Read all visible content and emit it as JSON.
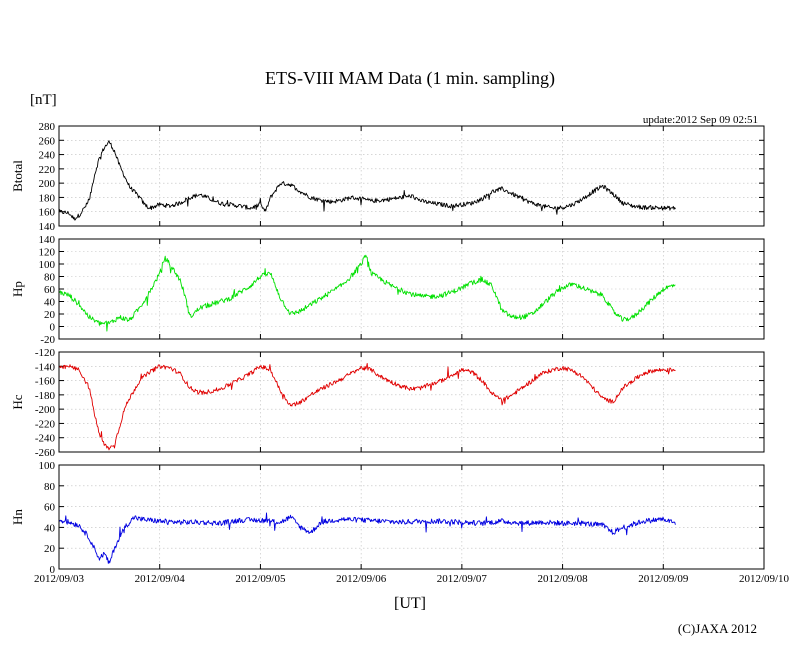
{
  "chart_data": {
    "type": "line",
    "title": "ETS-VIII MAM Data (1 min. sampling)",
    "unit_label": "[nT]",
    "update_text": "update:2012 Sep 09 02:51",
    "xlabel": "[UT]",
    "copyright": "(C)JAXA 2012",
    "x_ticks": [
      "2012/09/03",
      "2012/09/04",
      "2012/09/05",
      "2012/09/06",
      "2012/09/07",
      "2012/09/08",
      "2012/09/09",
      "2012/09/10"
    ],
    "x_range_days": [
      0,
      7
    ],
    "data_end_day": 6.12,
    "panels": [
      {
        "name": "Btotal",
        "ylabel": "Btotal",
        "ylim": [
          140,
          280
        ],
        "yticks": [
          "280",
          "260",
          "240",
          "220",
          "200",
          "180",
          "160",
          "140"
        ],
        "color": "#000000",
        "noise": 3,
        "series_x": [
          0,
          0.1,
          0.15,
          0.2,
          0.3,
          0.35,
          0.4,
          0.45,
          0.5,
          0.55,
          0.6,
          0.7,
          0.8,
          0.85,
          0.9,
          1.0,
          1.1,
          1.2,
          1.3,
          1.4,
          1.5,
          1.6,
          1.7,
          1.8,
          1.9,
          2.0,
          2.05,
          2.1,
          2.2,
          2.3,
          2.4,
          2.5,
          2.6,
          2.7,
          2.8,
          2.9,
          3.0,
          3.1,
          3.2,
          3.3,
          3.4,
          3.5,
          3.6,
          3.7,
          3.8,
          3.9,
          4.0,
          4.1,
          4.2,
          4.3,
          4.4,
          4.5,
          4.6,
          4.7,
          4.8,
          4.9,
          5.0,
          5.1,
          5.2,
          5.3,
          5.4,
          5.5,
          5.6,
          5.7,
          5.8,
          5.9,
          6.0,
          6.12
        ],
        "series_y": [
          160,
          158,
          150,
          155,
          175,
          210,
          235,
          250,
          258,
          245,
          225,
          195,
          180,
          170,
          165,
          170,
          168,
          172,
          180,
          184,
          178,
          172,
          170,
          168,
          165,
          170,
          160,
          180,
          200,
          198,
          188,
          180,
          176,
          174,
          176,
          180,
          178,
          175,
          176,
          178,
          180,
          182,
          175,
          172,
          170,
          168,
          170,
          172,
          178,
          188,
          192,
          185,
          178,
          172,
          168,
          165,
          166,
          170,
          178,
          188,
          196,
          185,
          172,
          168,
          166,
          166,
          165,
          165
        ]
      },
      {
        "name": "Hp",
        "ylabel": "Hp",
        "ylim": [
          -20,
          140
        ],
        "yticks": [
          "140",
          "120",
          "100",
          "80",
          "60",
          "40",
          "20",
          "0",
          "-20"
        ],
        "color": "#00e000",
        "noise": 4,
        "series_x": [
          0,
          0.1,
          0.2,
          0.3,
          0.4,
          0.5,
          0.6,
          0.7,
          0.8,
          0.9,
          1.0,
          1.05,
          1.1,
          1.2,
          1.25,
          1.3,
          1.4,
          1.5,
          1.6,
          1.7,
          1.8,
          1.9,
          2.0,
          2.1,
          2.2,
          2.3,
          2.4,
          2.5,
          2.6,
          2.7,
          2.8,
          2.9,
          3.0,
          3.05,
          3.1,
          3.2,
          3.3,
          3.4,
          3.5,
          3.6,
          3.7,
          3.8,
          3.9,
          4.0,
          4.1,
          4.2,
          4.3,
          4.4,
          4.5,
          4.6,
          4.7,
          4.8,
          4.9,
          5.0,
          5.1,
          5.2,
          5.3,
          5.4,
          5.5,
          5.6,
          5.7,
          5.8,
          5.9,
          6.0,
          6.12
        ],
        "series_y": [
          55,
          50,
          35,
          15,
          5,
          5,
          15,
          10,
          30,
          55,
          85,
          110,
          100,
          75,
          50,
          15,
          30,
          35,
          40,
          45,
          55,
          65,
          80,
          85,
          45,
          20,
          25,
          35,
          45,
          55,
          65,
          80,
          100,
          115,
          85,
          75,
          65,
          58,
          52,
          48,
          48,
          50,
          55,
          62,
          70,
          75,
          65,
          25,
          15,
          15,
          20,
          35,
          50,
          62,
          68,
          62,
          55,
          50,
          25,
          10,
          15,
          30,
          45,
          60,
          67
        ]
      },
      {
        "name": "Hc",
        "ylabel": "Hc",
        "ylim": [
          -260,
          -120
        ],
        "yticks": [
          "-120",
          "-140",
          "-160",
          "-180",
          "-200",
          "-220",
          "-240",
          "-260"
        ],
        "color": "#e00000",
        "noise": 3,
        "series_x": [
          0,
          0.1,
          0.2,
          0.3,
          0.35,
          0.4,
          0.45,
          0.5,
          0.55,
          0.6,
          0.65,
          0.7,
          0.8,
          0.9,
          1.0,
          1.1,
          1.2,
          1.3,
          1.4,
          1.5,
          1.6,
          1.7,
          1.8,
          1.9,
          2.0,
          2.1,
          2.2,
          2.3,
          2.4,
          2.5,
          2.6,
          2.7,
          2.8,
          2.9,
          3.0,
          3.1,
          3.2,
          3.3,
          3.4,
          3.5,
          3.6,
          3.7,
          3.8,
          3.9,
          4.0,
          4.1,
          4.2,
          4.3,
          4.4,
          4.5,
          4.6,
          4.7,
          4.8,
          4.9,
          5.0,
          5.1,
          5.2,
          5.3,
          5.4,
          5.5,
          5.6,
          5.7,
          5.8,
          5.9,
          6.0,
          6.12
        ],
        "series_y": [
          -143,
          -140,
          -145,
          -170,
          -205,
          -235,
          -250,
          -255,
          -250,
          -225,
          -200,
          -185,
          -160,
          -148,
          -140,
          -142,
          -150,
          -170,
          -178,
          -175,
          -172,
          -165,
          -158,
          -150,
          -140,
          -145,
          -175,
          -195,
          -190,
          -180,
          -172,
          -165,
          -158,
          -150,
          -142,
          -145,
          -155,
          -162,
          -168,
          -172,
          -170,
          -165,
          -160,
          -152,
          -145,
          -148,
          -160,
          -178,
          -188,
          -180,
          -170,
          -160,
          -150,
          -145,
          -142,
          -146,
          -155,
          -170,
          -185,
          -190,
          -170,
          -160,
          -150,
          -146,
          -145,
          -145
        ]
      },
      {
        "name": "Hn",
        "ylabel": "Hn",
        "ylim": [
          0,
          100
        ],
        "yticks": [
          "100",
          "80",
          "60",
          "40",
          "20",
          "0"
        ],
        "color": "#0000e0",
        "noise": 2.5,
        "series_x": [
          0,
          0.1,
          0.2,
          0.3,
          0.35,
          0.4,
          0.45,
          0.5,
          0.55,
          0.6,
          0.65,
          0.7,
          0.75,
          0.8,
          0.9,
          1.0,
          1.2,
          1.4,
          1.6,
          1.8,
          2.0,
          2.2,
          2.3,
          2.4,
          2.5,
          2.6,
          2.8,
          3.0,
          3.2,
          3.4,
          3.6,
          3.8,
          4.0,
          4.2,
          4.4,
          4.6,
          4.8,
          5.0,
          5.2,
          5.4,
          5.5,
          5.6,
          5.8,
          6.0,
          6.12
        ],
        "series_y": [
          47,
          45,
          42,
          30,
          20,
          10,
          15,
          5,
          20,
          30,
          40,
          45,
          50,
          48,
          47,
          46,
          45,
          45,
          44,
          47,
          47,
          45,
          50,
          40,
          35,
          45,
          48,
          47,
          46,
          45,
          46,
          46,
          45,
          44,
          46,
          44,
          45,
          44,
          44,
          42,
          35,
          40,
          46,
          48,
          44
        ]
      }
    ]
  }
}
